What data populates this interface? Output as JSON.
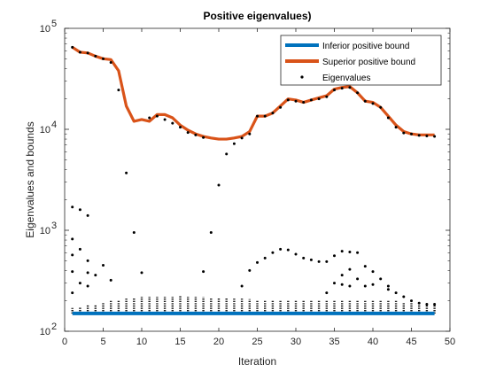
{
  "chart_data": {
    "type": "line",
    "title": "Positive eigenvalues)",
    "xlabel": "Iteration",
    "ylabel": "Eigenvalues and bounds",
    "xlim": [
      0,
      50
    ],
    "ylim": [
      100,
      100000
    ],
    "yscale": "log",
    "x_ticks": [
      "0",
      "5",
      "10",
      "15",
      "20",
      "25",
      "30",
      "35",
      "40",
      "45",
      "50"
    ],
    "y_ticks": [
      {
        "base": "10",
        "exp": "2",
        "value": 100
      },
      {
        "base": "10",
        "exp": "3",
        "value": 1000
      },
      {
        "base": "10",
        "exp": "4",
        "value": 10000
      },
      {
        "base": "10",
        "exp": "5",
        "value": 100000
      }
    ],
    "grid": false,
    "legend_position": "top-right",
    "series": [
      {
        "name": "Inferior positive bound",
        "color": "#0072BD",
        "x": [
          1,
          2,
          3,
          4,
          5,
          6,
          7,
          8,
          9,
          10,
          11,
          12,
          13,
          14,
          15,
          16,
          17,
          18,
          19,
          20,
          21,
          22,
          23,
          24,
          25,
          26,
          27,
          28,
          29,
          30,
          31,
          32,
          33,
          34,
          35,
          36,
          37,
          38,
          39,
          40,
          41,
          42,
          43,
          44,
          45,
          46,
          47,
          48
        ],
        "values": [
          150,
          150,
          150,
          150,
          150,
          150,
          150,
          150,
          150,
          150,
          150,
          150,
          150,
          150,
          150,
          150,
          150,
          150,
          150,
          150,
          150,
          150,
          150,
          150,
          150,
          150,
          150,
          150,
          150,
          150,
          150,
          150,
          150,
          150,
          150,
          150,
          150,
          150,
          150,
          150,
          150,
          150,
          150,
          150,
          150,
          150,
          150,
          150
        ]
      },
      {
        "name": "Superior positive bound",
        "color": "#D95319",
        "x": [
          1,
          2,
          3,
          4,
          5,
          6,
          7,
          8,
          9,
          10,
          11,
          12,
          13,
          14,
          15,
          16,
          17,
          18,
          19,
          20,
          21,
          22,
          23,
          24,
          25,
          26,
          27,
          28,
          29,
          30,
          31,
          32,
          33,
          34,
          35,
          36,
          37,
          38,
          39,
          40,
          41,
          42,
          43,
          44,
          45,
          46,
          47,
          48
        ],
        "values": [
          65000,
          58000,
          57000,
          53000,
          50000,
          49000,
          38000,
          17000,
          12000,
          12500,
          12000,
          14000,
          14000,
          13000,
          11000,
          9800,
          9000,
          8500,
          8200,
          8000,
          8000,
          8200,
          8500,
          9500,
          13500,
          13500,
          14500,
          17000,
          20000,
          19500,
          18500,
          19500,
          20500,
          21500,
          25000,
          26000,
          26500,
          23000,
          19000,
          18500,
          16500,
          13500,
          11000,
          9500,
          9000,
          8800,
          8800,
          8800
        ]
      },
      {
        "name": "Eigenvalues",
        "color": "#000000",
        "points": [
          [
            1,
            65000
          ],
          [
            2,
            58000
          ],
          [
            3,
            57000
          ],
          [
            4,
            53000
          ],
          [
            5,
            50000
          ],
          [
            6,
            46000
          ],
          [
            7,
            24500
          ],
          [
            8,
            3700
          ],
          [
            9,
            950
          ],
          [
            10,
            380
          ],
          [
            11,
            13000
          ],
          [
            12,
            13500
          ],
          [
            13,
            12500
          ],
          [
            14,
            11500
          ],
          [
            15,
            10500
          ],
          [
            16,
            9300
          ],
          [
            17,
            8800
          ],
          [
            18,
            8300
          ],
          [
            19,
            950
          ],
          [
            20,
            2800
          ],
          [
            21,
            5700
          ],
          [
            22,
            7200
          ],
          [
            23,
            8200
          ],
          [
            24,
            9000
          ],
          [
            25,
            13500
          ],
          [
            26,
            13500
          ],
          [
            27,
            14500
          ],
          [
            28,
            16500
          ],
          [
            29,
            19500
          ],
          [
            30,
            19000
          ],
          [
            31,
            18500
          ],
          [
            32,
            19500
          ],
          [
            33,
            20000
          ],
          [
            34,
            21000
          ],
          [
            35,
            24500
          ],
          [
            36,
            25500
          ],
          [
            37,
            26000
          ],
          [
            38,
            23000
          ],
          [
            39,
            19000
          ],
          [
            40,
            18000
          ],
          [
            41,
            16500
          ],
          [
            42,
            13000
          ],
          [
            43,
            10500
          ],
          [
            44,
            9200
          ],
          [
            45,
            9000
          ],
          [
            46,
            8700
          ],
          [
            47,
            8600
          ],
          [
            48,
            8500
          ],
          [
            1,
            1700
          ],
          [
            2,
            1600
          ],
          [
            3,
            1400
          ],
          [
            1,
            820
          ],
          [
            2,
            650
          ],
          [
            3,
            500
          ],
          [
            4,
            360
          ],
          [
            5,
            450
          ],
          [
            6,
            320
          ],
          [
            1,
            570
          ],
          [
            1,
            390
          ],
          [
            2,
            300
          ],
          [
            1,
            240
          ],
          [
            3,
            380
          ],
          [
            3,
            280
          ],
          [
            18,
            390
          ],
          [
            23,
            280
          ],
          [
            24,
            400
          ],
          [
            25,
            480
          ],
          [
            26,
            530
          ],
          [
            27,
            600
          ],
          [
            28,
            650
          ],
          [
            29,
            640
          ],
          [
            30,
            580
          ],
          [
            31,
            530
          ],
          [
            32,
            510
          ],
          [
            33,
            490
          ],
          [
            34,
            490
          ],
          [
            35,
            560
          ],
          [
            36,
            620
          ],
          [
            37,
            610
          ],
          [
            38,
            600
          ],
          [
            39,
            440
          ],
          [
            40,
            390
          ],
          [
            41,
            330
          ],
          [
            42,
            260
          ],
          [
            43,
            240
          ],
          [
            44,
            220
          ],
          [
            45,
            200
          ],
          [
            46,
            190
          ],
          [
            47,
            185
          ],
          [
            48,
            185
          ],
          [
            35,
            300
          ],
          [
            36,
            360
          ],
          [
            37,
            410
          ],
          [
            38,
            330
          ],
          [
            39,
            280
          ],
          [
            37,
            280
          ],
          [
            36,
            290
          ],
          [
            34,
            240
          ],
          [
            40,
            290
          ],
          [
            42,
            280
          ]
        ],
        "dense_band": {
          "x_from": 1,
          "x_to": 48,
          "low": 150,
          "high": [
            170,
            175,
            180,
            185,
            195,
            200,
            205,
            210,
            215,
            220,
            220,
            220,
            220,
            220,
            222,
            220,
            220,
            218,
            215,
            215,
            212,
            210,
            210,
            208,
            205,
            205,
            205,
            205,
            205,
            205,
            205,
            205,
            205,
            205,
            205,
            205,
            205,
            205,
            200,
            200,
            200,
            200,
            200,
            195,
            190,
            185,
            180,
            180
          ]
        }
      }
    ]
  }
}
